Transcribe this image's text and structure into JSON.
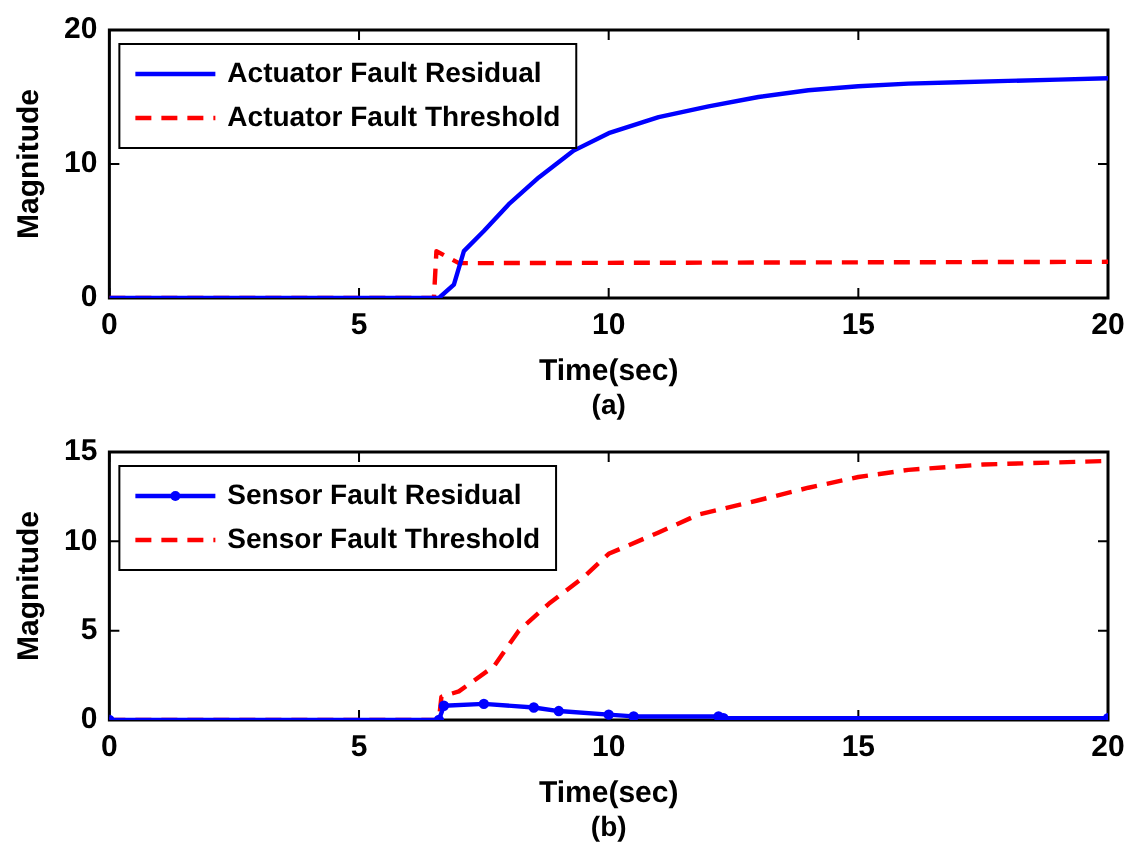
{
  "chart_data": [
    {
      "type": "line",
      "xlabel": "Time(sec)",
      "ylabel": "Magnitude",
      "annotations": [
        "(a)"
      ],
      "xlim": [
        0,
        20
      ],
      "xticks": [
        0,
        5,
        10,
        15,
        20
      ],
      "ylim": [
        0,
        20
      ],
      "yticks": [
        0,
        10,
        20
      ],
      "legend": "top left",
      "series": [
        {
          "name": "Actuator Fault Residual",
          "color": "#0000ff",
          "line_style": "solid",
          "x": [
            0,
            6.6,
            6.9,
            7.1,
            7.5,
            8,
            8.6,
            9.3,
            10,
            11,
            12,
            13,
            14,
            15,
            16,
            17,
            18,
            19,
            20
          ],
          "values": [
            0,
            0,
            1,
            3.5,
            5,
            7,
            9,
            11,
            12.3,
            13.5,
            14.3,
            15,
            15.5,
            15.8,
            16,
            16.1,
            16.2,
            16.3,
            16.4
          ]
        },
        {
          "name": "Actuator Fault Threshold",
          "color": "#ff0000",
          "line_style": "dashed",
          "x": [
            0,
            6.5,
            6.55,
            6.7,
            7,
            20
          ],
          "values": [
            0,
            0,
            3.5,
            3.2,
            2.6,
            2.7
          ]
        }
      ]
    },
    {
      "type": "line",
      "xlabel": "Time(sec)",
      "ylabel": "Magnitude",
      "annotations": [
        "(b)"
      ],
      "xlim": [
        0,
        20
      ],
      "xticks": [
        0,
        5,
        10,
        15,
        20
      ],
      "ylim": [
        0,
        15
      ],
      "yticks": [
        0,
        5,
        10,
        15
      ],
      "legend": "top left",
      "series": [
        {
          "name": "Sensor Fault Residual",
          "color": "#0000ff",
          "line_style": "solid",
          "marker": "circle",
          "x": [
            0,
            6.6,
            6.7,
            7.5,
            8.5,
            9,
            10,
            10.5,
            12.2,
            12.3,
            20
          ],
          "values": [
            0,
            0,
            0.8,
            0.9,
            0.7,
            0.5,
            0.3,
            0.2,
            0.2,
            0.1,
            0.1
          ]
        },
        {
          "name": "Sensor Fault Threshold",
          "color": "#ff0000",
          "line_style": "dashed",
          "x": [
            0,
            6.6,
            6.65,
            7,
            7.7,
            8.2,
            8.8,
            9.5,
            10,
            11,
            11.8,
            13,
            14,
            15,
            16,
            17.5,
            20
          ],
          "values": [
            0,
            0,
            1.3,
            1.6,
            3,
            5,
            6.5,
            8,
            9.3,
            10.5,
            11.5,
            12.3,
            13,
            13.6,
            14,
            14.3,
            14.5
          ]
        }
      ]
    }
  ]
}
